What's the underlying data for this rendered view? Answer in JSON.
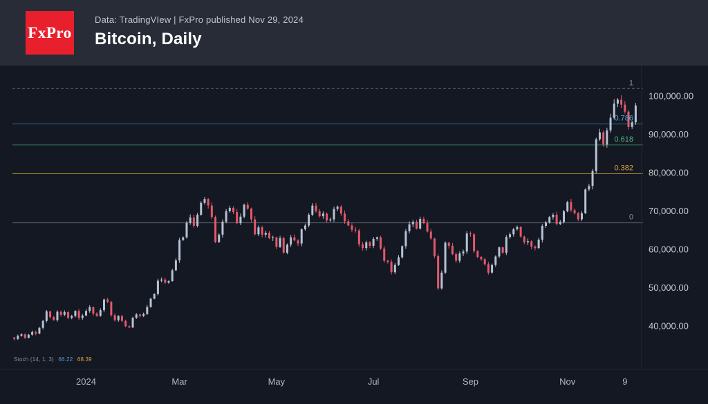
{
  "header": {
    "logo_text": "FxPro",
    "source_line": "Data: TradingVIew | FxPro published Nov 29, 2024",
    "title": "Bitcoin, Daily"
  },
  "chart_data": {
    "type": "candlestick",
    "symbol": "Bitcoin",
    "timeframe": "Daily",
    "unit": "USD",
    "sample_interval_days": 2.25,
    "closes": [
      36600,
      37400,
      37800,
      36900,
      37700,
      38400,
      38000,
      39500,
      41300,
      43800,
      42300,
      41500,
      43700,
      42900,
      43600,
      42100,
      42600,
      43900,
      42100,
      42700,
      43900,
      44900,
      43200,
      42600,
      44100,
      46900,
      46300,
      42800,
      41500,
      42600,
      41300,
      39900,
      39600,
      42100,
      43000,
      42600,
      43100,
      44900,
      47100,
      48300,
      51800,
      52100,
      51300,
      51700,
      54500,
      57100,
      62400,
      63100,
      66900,
      68300,
      66100,
      69000,
      72100,
      73100,
      71400,
      68400,
      61900,
      63800,
      67200,
      69900,
      70800,
      69700,
      66800,
      68500,
      71600,
      70600,
      67800,
      63900,
      65700,
      63800,
      64300,
      62900,
      63100,
      60600,
      62900,
      59100,
      61200,
      63100,
      62300,
      61500,
      65200,
      66200,
      69000,
      71400,
      69900,
      68600,
      69300,
      67500,
      67800,
      70500,
      71100,
      69300,
      67300,
      66200,
      65100,
      64900,
      61300,
      60300,
      61800,
      60900,
      62700,
      63100,
      60200,
      57000,
      56700,
      54000,
      55900,
      57900,
      60800,
      64700,
      66500,
      67100,
      65400,
      67900,
      66800,
      64600,
      62800,
      58200,
      49800,
      53900,
      61700,
      60900,
      58700,
      57000,
      58900,
      59400,
      64100,
      63900,
      59500,
      58000,
      57400,
      56100,
      53900,
      55900,
      58100,
      60500,
      59100,
      63200,
      63900,
      65200,
      65800,
      63300,
      61800,
      62100,
      60700,
      60300,
      62500,
      66100,
      67000,
      68400,
      69000,
      66600,
      67100,
      69900,
      72300,
      70200,
      69400,
      67800,
      69400,
      75600,
      76500,
      80400,
      88700,
      90500,
      87300,
      91000,
      94300,
      98000,
      99000,
      97700,
      95900,
      91900,
      93100,
      97500
    ],
    "y_axis": {
      "min": 29000,
      "max": 107000,
      "ticks": [
        {
          "label": "100,000.00",
          "price": 100000
        },
        {
          "label": "90,000.00",
          "price": 90000
        },
        {
          "label": "80,000.00",
          "price": 80000
        },
        {
          "label": "70,000.00",
          "price": 70000
        },
        {
          "label": "60,000.00",
          "price": 60000
        },
        {
          "label": "50,000.00",
          "price": 50000
        },
        {
          "label": "40,000.00",
          "price": 40000
        }
      ]
    },
    "x_axis": {
      "ticks": [
        {
          "label": "2024",
          "index": 20
        },
        {
          "label": "Mar",
          "index": 46
        },
        {
          "label": "May",
          "index": 73
        },
        {
          "label": "Jul",
          "index": 100
        },
        {
          "label": "Sep",
          "index": 127
        },
        {
          "label": "Nov",
          "index": 154
        },
        {
          "label": "9",
          "index": 170
        }
      ]
    },
    "fib_levels": [
      {
        "label": "1",
        "price": 101900,
        "line_color": "#62656e",
        "label_color": "#8b8e99",
        "dashed": true
      },
      {
        "label": "0.786",
        "price": 92700,
        "line_color": "#2e6e9e",
        "label_color": "#55aee0",
        "dashed": false
      },
      {
        "label": "0.618",
        "price": 87200,
        "line_color": "#2f7d5b",
        "label_color": "#4db887",
        "dashed": false
      },
      {
        "label": "0.382",
        "price": 79700,
        "line_color": "#a87f2c",
        "label_color": "#dca63f",
        "dashed": false
      },
      {
        "label": "0",
        "price": 66900,
        "line_color": "#5d616b",
        "label_color": "#8b8e99",
        "dashed": false
      }
    ],
    "colors": {
      "up": "#b6c2d4",
      "down": "#e4586a",
      "background": "#141822",
      "header_bg": "#282c36",
      "axis_text": "#c6c9d1",
      "logo_red": "#e8202d"
    },
    "indicator": {
      "name": "Stoch (14, 1, 3)",
      "k_value": "66.22",
      "d_value": "68.39"
    }
  }
}
